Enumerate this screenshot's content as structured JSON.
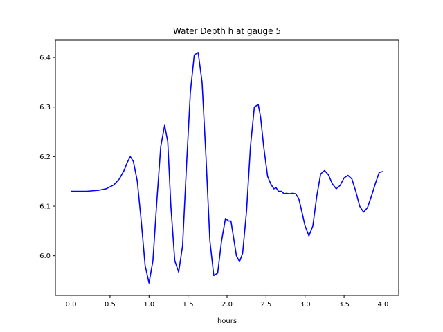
{
  "chart_data": {
    "type": "line",
    "title": "Water Depth h at gauge 5",
    "xlabel": "hours",
    "ylabel": "",
    "xlim": [
      -0.2,
      4.2
    ],
    "ylim": [
      5.92,
      6.435
    ],
    "xticks": [
      0.0,
      0.5,
      1.0,
      1.5,
      2.0,
      2.5,
      3.0,
      3.5,
      4.0
    ],
    "xtick_labels": [
      "0.0",
      "0.5",
      "1.0",
      "1.5",
      "2.0",
      "2.5",
      "3.0",
      "3.5",
      "4.0"
    ],
    "yticks": [
      6.0,
      6.1,
      6.2,
      6.3,
      6.4
    ],
    "ytick_labels": [
      "6.0",
      "6.1",
      "6.2",
      "6.3",
      "6.4"
    ],
    "grid": false,
    "series": [
      {
        "color": "#0000ff",
        "x": [
          0.0,
          0.2,
          0.35,
          0.45,
          0.55,
          0.62,
          0.68,
          0.72,
          0.76,
          0.8,
          0.85,
          0.9,
          0.95,
          1.0,
          1.05,
          1.1,
          1.15,
          1.2,
          1.24,
          1.28,
          1.33,
          1.38,
          1.43,
          1.48,
          1.53,
          1.58,
          1.63,
          1.68,
          1.73,
          1.78,
          1.83,
          1.88,
          1.93,
          1.98,
          2.02,
          2.05,
          2.08,
          2.12,
          2.16,
          2.2,
          2.25,
          2.3,
          2.35,
          2.4,
          2.43,
          2.47,
          2.52,
          2.56,
          2.6,
          2.63,
          2.66,
          2.7,
          2.73,
          2.76,
          2.8,
          2.84,
          2.88,
          2.92,
          2.95,
          3.0,
          3.05,
          3.1,
          3.15,
          3.2,
          3.25,
          3.3,
          3.35,
          3.4,
          3.45,
          3.5,
          3.55,
          3.6,
          3.65,
          3.7,
          3.75,
          3.8,
          3.85,
          3.9,
          3.95,
          4.0
        ],
        "y": [
          6.13,
          6.13,
          6.132,
          6.135,
          6.143,
          6.155,
          6.172,
          6.188,
          6.2,
          6.19,
          6.15,
          6.07,
          5.98,
          5.945,
          5.99,
          6.11,
          6.22,
          6.263,
          6.23,
          6.1,
          5.99,
          5.967,
          6.02,
          6.18,
          6.33,
          6.405,
          6.41,
          6.35,
          6.2,
          6.03,
          5.96,
          5.965,
          6.03,
          6.075,
          6.07,
          6.07,
          6.04,
          6.0,
          5.988,
          6.005,
          6.09,
          6.22,
          6.3,
          6.305,
          6.28,
          6.22,
          6.16,
          6.145,
          6.135,
          6.137,
          6.13,
          6.13,
          6.125,
          6.126,
          6.125,
          6.126,
          6.125,
          6.115,
          6.095,
          6.06,
          6.04,
          6.06,
          6.12,
          6.165,
          6.172,
          6.163,
          6.145,
          6.135,
          6.142,
          6.157,
          6.162,
          6.155,
          6.13,
          6.1,
          6.088,
          6.097,
          6.12,
          6.145,
          6.168,
          6.17
        ]
      }
    ]
  }
}
